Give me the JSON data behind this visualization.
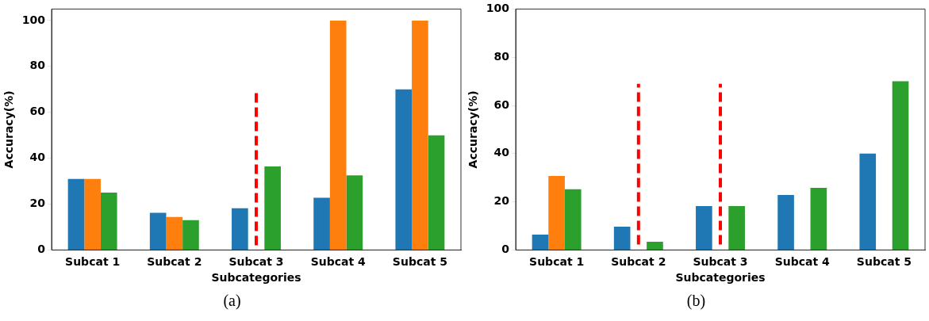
{
  "chart_data": [
    {
      "type": "bar",
      "xlabel": "Subcategories",
      "ylabel": "Accuracy(%)",
      "categories": [
        "Subcat 1",
        "Subcat 2",
        "Subcat 3",
        "Subcat 4",
        "Subcat 5"
      ],
      "ylim": [
        0,
        105
      ],
      "yticks": [
        0,
        20,
        40,
        60,
        80,
        100
      ],
      "grid": false,
      "legend": false,
      "annotations": [
        "(a)"
      ],
      "series": [
        {
          "color": "#1f77b4",
          "values": [
            31,
            16.2,
            18.2,
            22.8,
            70
          ]
        },
        {
          "color": "#ff7f0e",
          "values": [
            31,
            14.4,
            null,
            100,
            100
          ]
        },
        {
          "color": "#2ca02c",
          "values": [
            25,
            13,
            36.4,
            32.5,
            50
          ]
        },
        {
          "type": "line",
          "color": "#ff0000",
          "line_style": "dashed",
          "marker": "none",
          "x": [
            "Subcat 3",
            "Subcat 3"
          ],
          "values": [
            2,
            69
          ]
        }
      ]
    },
    {
      "type": "bar",
      "xlabel": "Subcategories",
      "ylabel": "Accuracy(%)",
      "categories": [
        "Subcat 1",
        "Subcat 2",
        "Subcat 3",
        "Subcat 4",
        "Subcat 5"
      ],
      "ylim": [
        0,
        100
      ],
      "yticks": [
        0,
        20,
        40,
        60,
        80,
        100
      ],
      "grid": false,
      "legend": false,
      "annotations": [
        "(b)"
      ],
      "series": [
        {
          "color": "#1f77b4",
          "values": [
            6.4,
            9.7,
            18.2,
            22.8,
            40
          ]
        },
        {
          "color": "#ff7f0e",
          "values": [
            30.7,
            null,
            null,
            null,
            null
          ]
        },
        {
          "color": "#2ca02c",
          "values": [
            25.2,
            3.4,
            18.2,
            25.8,
            70
          ]
        },
        {
          "type": "line",
          "color": "#ff0000",
          "line_style": "dashed",
          "marker": "none",
          "x": [
            "Subcat 2",
            "Subcat 2"
          ],
          "values": [
            2.3,
            69
          ]
        },
        {
          "type": "line",
          "color": "#ff0000",
          "line_style": "dashed",
          "marker": "none",
          "x": [
            "Subcat 3",
            "Subcat 3"
          ],
          "values": [
            2.3,
            69
          ]
        }
      ]
    }
  ]
}
